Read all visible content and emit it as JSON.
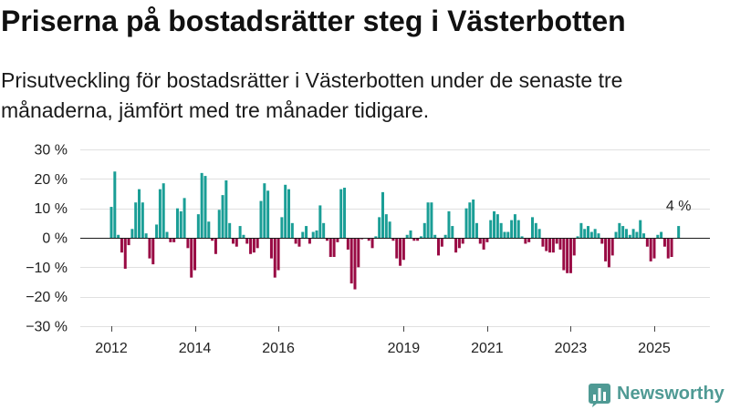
{
  "chart_data": {
    "type": "bar",
    "title": "Priserna på bostadsrätter steg i Västerbotten",
    "subtitle": "Prisutveckling för bostadsrätter i Västerbotten under de senaste tre månaderna, jämfört med tre månader tidigare.",
    "ylim": [
      -30,
      30
    ],
    "yticks": [
      30,
      20,
      10,
      0,
      -10,
      -20,
      -30
    ],
    "ytick_labels": [
      "30 %",
      "20 %",
      "10 %",
      "0 %",
      "−10 %",
      "−20 %",
      "−30 %"
    ],
    "xticks": [
      "2012",
      "2014",
      "2016",
      "2019",
      "2021",
      "2023",
      "2025"
    ],
    "grid": true,
    "colors": {
      "positive": "#1a9e96",
      "negative": "#990a44"
    },
    "x": [
      "2012-01",
      "2012-02",
      "2012-03",
      "2012-04",
      "2012-05",
      "2012-06",
      "2012-07",
      "2012-08",
      "2012-09",
      "2012-10",
      "2012-11",
      "2012-12",
      "2013-01",
      "2013-02",
      "2013-03",
      "2013-04",
      "2013-05",
      "2013-06",
      "2013-07",
      "2013-08",
      "2013-09",
      "2013-10",
      "2013-11",
      "2013-12",
      "2014-01",
      "2014-02",
      "2014-03",
      "2014-04",
      "2014-05",
      "2014-06",
      "2014-07",
      "2014-08",
      "2014-09",
      "2014-10",
      "2014-11",
      "2014-12",
      "2015-01",
      "2015-02",
      "2015-03",
      "2015-04",
      "2015-05",
      "2015-06",
      "2015-07",
      "2015-08",
      "2015-09",
      "2015-10",
      "2015-11",
      "2015-12",
      "2016-01",
      "2016-02",
      "2016-03",
      "2016-04",
      "2016-05",
      "2016-06",
      "2016-07",
      "2016-08",
      "2016-09",
      "2016-10",
      "2016-11",
      "2016-12",
      "2017-01",
      "2017-02",
      "2017-03",
      "2017-04",
      "2017-05",
      "2017-06",
      "2017-07",
      "2017-08",
      "2017-09",
      "2017-10",
      "2017-11",
      "2017-12",
      "2018-01",
      "2018-02",
      "2018-03",
      "2018-04",
      "2018-05",
      "2018-06",
      "2018-07",
      "2018-08",
      "2018-09",
      "2018-10",
      "2018-11",
      "2018-12",
      "2019-01",
      "2019-02",
      "2019-03",
      "2019-04",
      "2019-05",
      "2019-06",
      "2019-07",
      "2019-08",
      "2019-09",
      "2019-10",
      "2019-11",
      "2019-12",
      "2020-01",
      "2020-02",
      "2020-03",
      "2020-04",
      "2020-05",
      "2020-06",
      "2020-07",
      "2020-08",
      "2020-09",
      "2020-10",
      "2020-11",
      "2020-12",
      "2021-01",
      "2021-02",
      "2021-03",
      "2021-04",
      "2021-05",
      "2021-06",
      "2021-07",
      "2021-08",
      "2021-09",
      "2021-10",
      "2021-11",
      "2021-12",
      "2022-01",
      "2022-02",
      "2022-03",
      "2022-04",
      "2022-05",
      "2022-06",
      "2022-07",
      "2022-08",
      "2022-09",
      "2022-10",
      "2022-11",
      "2022-12",
      "2023-01",
      "2023-02",
      "2023-03",
      "2023-04",
      "2023-05",
      "2023-06",
      "2023-07",
      "2023-08",
      "2023-09",
      "2023-10",
      "2023-11",
      "2023-12",
      "2024-01",
      "2024-02",
      "2024-03",
      "2024-04",
      "2024-05",
      "2024-06",
      "2024-07",
      "2024-08",
      "2024-09",
      "2024-10",
      "2024-11",
      "2024-12",
      "2025-01",
      "2025-02",
      "2025-03",
      "2025-04",
      "2025-05",
      "2025-06",
      "2025-07",
      "2025-08"
    ],
    "values": [
      10.5,
      22.5,
      1,
      -5,
      -10.5,
      -2.5,
      3,
      12,
      16.5,
      12,
      1.5,
      -7,
      -9,
      4.5,
      16.5,
      18.5,
      2,
      -1.5,
      -1.5,
      10,
      9,
      13.5,
      -3.5,
      -13.5,
      -11,
      8,
      22,
      21,
      5.5,
      -1,
      -5.5,
      9.5,
      14.5,
      19.5,
      5,
      -2,
      -3,
      4,
      1,
      -2,
      -5.5,
      -5,
      -3.5,
      12.5,
      18.5,
      16,
      -7,
      -13.5,
      -11,
      7,
      18,
      16.5,
      5,
      -2,
      -3,
      2,
      4,
      -2,
      2,
      2.5,
      11,
      5,
      -1,
      -6.5,
      -6.5,
      -1.5,
      16.5,
      17,
      -4,
      -15.5,
      -17.5,
      -10,
      -0.5,
      0,
      -1,
      -3.5,
      0.5,
      7,
      15.5,
      8,
      5.5,
      -1,
      -7,
      -9.5,
      -7.5,
      1,
      2.5,
      -1,
      -1,
      0.5,
      5,
      12,
      12,
      1,
      -6,
      -3,
      1,
      9,
      4,
      -5,
      -3.5,
      -2,
      10,
      12,
      13,
      5,
      -2,
      -4,
      -1.5,
      6,
      9,
      8,
      5,
      2,
      2,
      6,
      8,
      6,
      0.5,
      -2,
      -1.5,
      7,
      5,
      3,
      -3,
      -4.5,
      -5,
      -5,
      -2,
      -4,
      -11,
      -12,
      -12,
      -6,
      0.5,
      5,
      3,
      4,
      2,
      3,
      1.5,
      -2,
      -8,
      -10,
      -6,
      2,
      5,
      4,
      3,
      1,
      3,
      2,
      6,
      1.5,
      -3,
      -8,
      -7,
      1,
      2,
      -3,
      -7,
      -6.5,
      0,
      4
    ],
    "annotation": {
      "x": "2025-08",
      "text": "4 %"
    }
  },
  "brand": {
    "name": "Newsworthy",
    "icon": "newsworthy-logo-icon",
    "color": "#4f9a94"
  }
}
